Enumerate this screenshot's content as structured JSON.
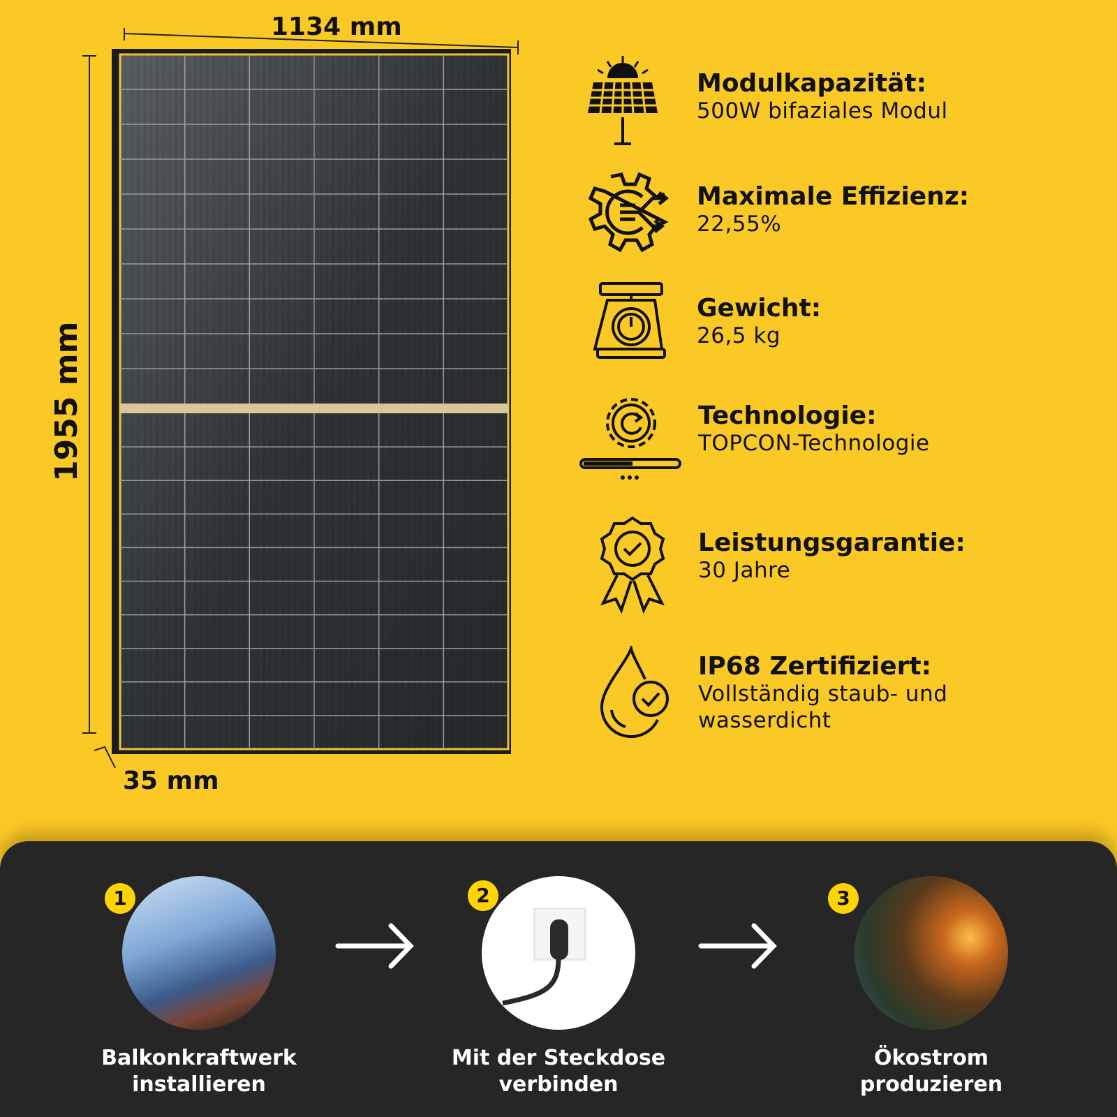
{
  "dimensions": {
    "width": "1134 mm",
    "height": "1955 mm",
    "depth": "35 mm"
  },
  "features": [
    {
      "icon": "solar-panel-icon",
      "title": "Modulkapazität:",
      "value": "500W bifaziales Modul"
    },
    {
      "icon": "gear-efficiency-icon",
      "title": "Maximale Effizienz:",
      "value": "22,55%"
    },
    {
      "icon": "scale-icon",
      "title": "Gewicht:",
      "value": "26,5 kg"
    },
    {
      "icon": "gear-progress-icon",
      "title": "Technologie:",
      "value": "TOPCON-Technologie"
    },
    {
      "icon": "award-badge-icon",
      "title": "Leistungsgarantie:",
      "value": "30 Jahre"
    },
    {
      "icon": "water-drop-check-icon",
      "title": "IP68 Zertifiziert:",
      "value": "Vollständig staub- und wasserdicht"
    }
  ],
  "steps": [
    {
      "number": "1",
      "label": "Balkonkraftwerk installieren"
    },
    {
      "number": "2",
      "label": "Mit der Steckdose verbinden"
    },
    {
      "number": "3",
      "label": "Ökostrom produzieren"
    }
  ],
  "colors": {
    "background": "#FBC926",
    "dark": "#262626",
    "badge": "#FFD400"
  }
}
